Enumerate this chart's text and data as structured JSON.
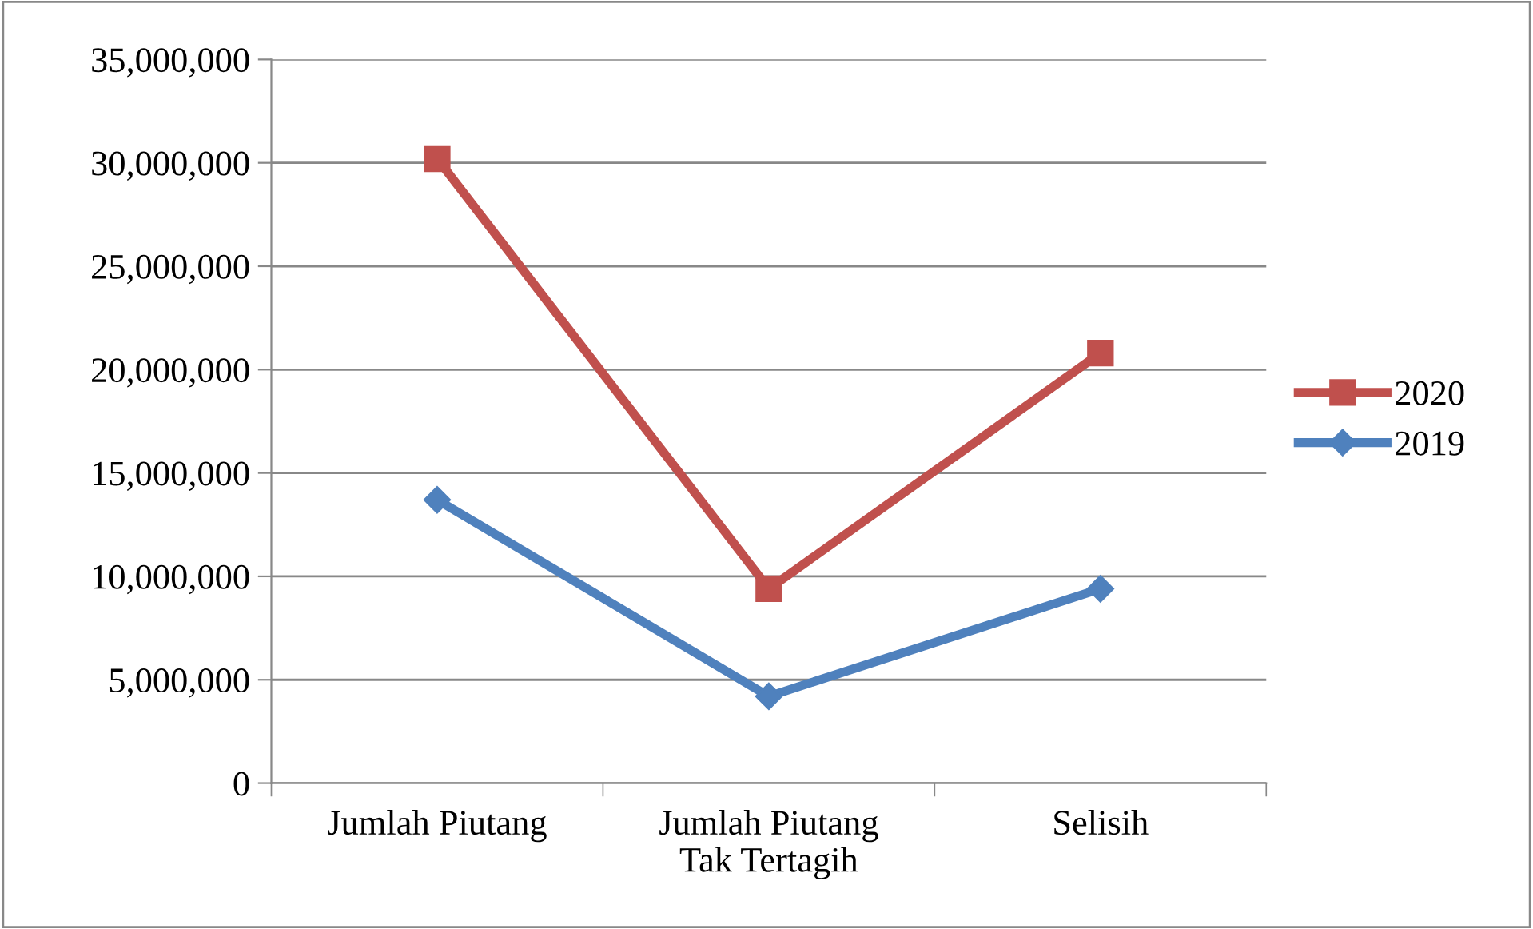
{
  "chart_data": {
    "type": "line",
    "categories": [
      "Jumlah Piutang",
      "Jumlah Piutang\nTak Tertagih",
      "Selisih"
    ],
    "series": [
      {
        "name": "2020",
        "color": "#c0504d",
        "values": [
          30200000,
          9400000,
          20800000
        ],
        "marker": "square"
      },
      {
        "name": "2019",
        "color": "#4f81bd",
        "values": [
          13700000,
          4200000,
          9400000
        ],
        "marker": "diamond"
      }
    ],
    "ylim": [
      0,
      35000000
    ],
    "yticks": [
      {
        "value": 0,
        "label": "0"
      },
      {
        "value": 5000000,
        "label": "5,000,000"
      },
      {
        "value": 10000000,
        "label": "10,000,000"
      },
      {
        "value": 15000000,
        "label": "15,000,000"
      },
      {
        "value": 20000000,
        "label": "20,000,000"
      },
      {
        "value": 25000000,
        "label": "25,000,000"
      },
      {
        "value": 30000000,
        "label": "30,000,000"
      },
      {
        "value": 35000000,
        "label": "35,000,000"
      }
    ],
    "grid": "y",
    "legend": "right"
  }
}
